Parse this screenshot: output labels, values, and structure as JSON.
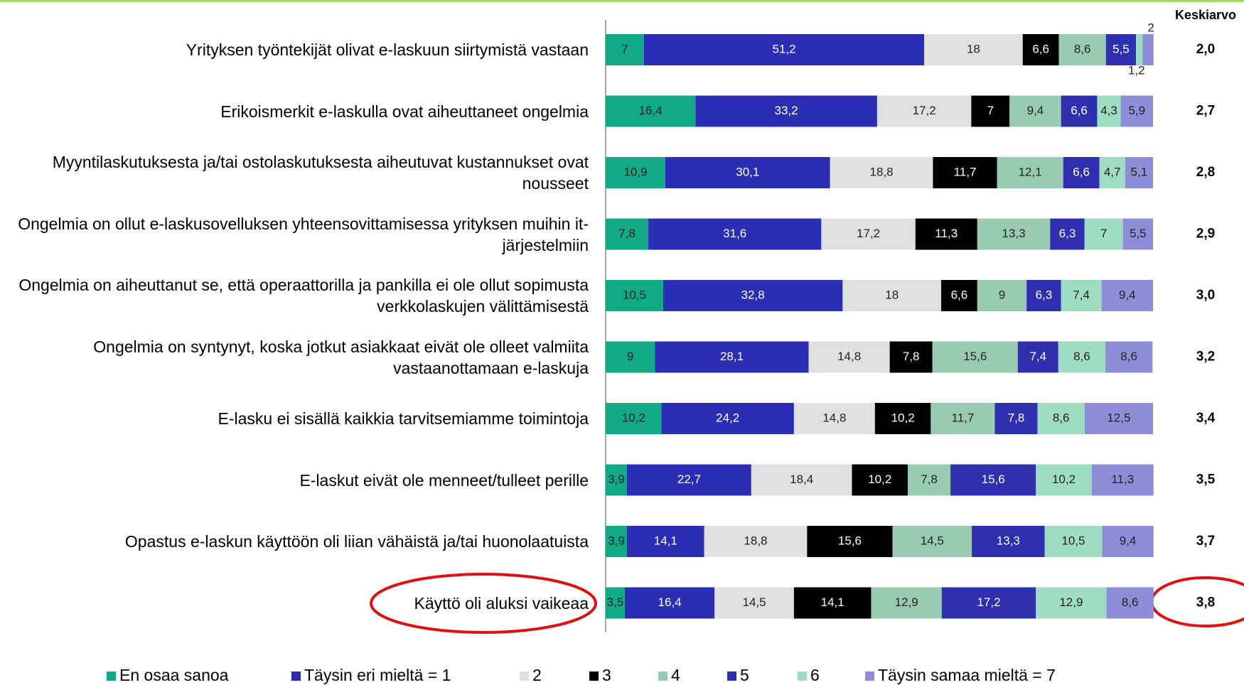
{
  "chart_data": {
    "type": "stacked-bar-horizontal",
    "categories": [
      "Yrityksen työntekijät olivat e-laskuun siirtymistä vastaan",
      "Erikoismerkit e-laskulla ovat aiheuttaneet ongelmia",
      "Myyntilaskutuksesta ja/tai ostolaskutuksesta aiheutuvat kustannukset ovat nousseet",
      "Ongelmia on ollut e-laskusovelluksen yhteensovittamisessa yrityksen muihin it-järjestelmiin",
      "Ongelmia on aiheuttanut se, että operaattorilla ja pankilla ei ole ollut sopimusta verkkolaskujen välittämisestä",
      "Ongelmia on syntynyt, koska jotkut asiakkaat eivät ole olleet valmiita vastaanottamaan e-laskuja",
      "E-lasku ei sisällä kaikkia tarvitsemiamme toimintoja",
      "E-laskut eivät ole menneet/tulleet perille",
      "Opastus e-laskun käyttöön oli liian vähäistä ja/tai huonolaatuista",
      "Käyttö oli aluksi vaikeaa"
    ],
    "xlim": [
      0,
      100
    ],
    "series": [
      {
        "name": "En osaa sanoa",
        "color": "#12a987",
        "values": [
          7,
          16.4,
          10.9,
          7.8,
          10.5,
          9,
          10.2,
          3.9,
          3.9,
          3.5
        ],
        "value_labels": [
          "7",
          "16,4",
          "10,9",
          "7,8",
          "10,5",
          "9",
          "10,2",
          "3,9",
          "3,9",
          "3,5"
        ]
      },
      {
        "name": "Täysin eri mieltä = 1",
        "color": "#2b2db4",
        "values": [
          51.2,
          33.2,
          30.1,
          31.6,
          32.8,
          28.1,
          24.2,
          22.7,
          14.1,
          16.4
        ],
        "value_labels": [
          "51,2",
          "33,2",
          "30,1",
          "31,6",
          "32,8",
          "28,1",
          "24,2",
          "22,7",
          "14,1",
          "16,4"
        ]
      },
      {
        "name": "2",
        "color": "#e0e0e0",
        "values": [
          18,
          17.2,
          18.8,
          17.2,
          18,
          14.8,
          14.8,
          18.4,
          18.8,
          14.5
        ],
        "value_labels": [
          "18",
          "17,2",
          "18,8",
          "17,2",
          "18",
          "14,8",
          "14,8",
          "18,4",
          "18,8",
          "14,5"
        ]
      },
      {
        "name": "3",
        "color": "#000000",
        "values": [
          6.6,
          7,
          11.7,
          11.3,
          6.6,
          7.8,
          10.2,
          10.2,
          15.6,
          14.1
        ],
        "value_labels": [
          "6,6",
          "7",
          "11,7",
          "11,3",
          "6,6",
          "7,8",
          "10,2",
          "10,2",
          "15,6",
          "14,1"
        ]
      },
      {
        "name": "4",
        "color": "#98cbb2",
        "values": [
          8.6,
          9.4,
          12.1,
          13.3,
          9,
          15.6,
          11.7,
          7.8,
          14.5,
          12.9
        ],
        "value_labels": [
          "8,6",
          "9,4",
          "12,1",
          "13,3",
          "9",
          "15,6",
          "11,7",
          "7,8",
          "14,5",
          "12,9"
        ]
      },
      {
        "name": "5",
        "color": "#2f30b0",
        "values": [
          5.5,
          6.6,
          6.6,
          6.3,
          6.3,
          7.4,
          7.8,
          15.6,
          13.3,
          17.2
        ],
        "value_labels": [
          "5,5",
          "6,6",
          "6,6",
          "6,3",
          "6,3",
          "7,4",
          "7,8",
          "15,6",
          "13,3",
          "17,2"
        ]
      },
      {
        "name": "6",
        "color": "#9fdcc4",
        "values": [
          1.2,
          4.3,
          4.7,
          7,
          7.4,
          8.6,
          8.6,
          10.2,
          10.5,
          12.9
        ],
        "value_labels": [
          "1,2",
          "4,3",
          "4,7",
          "7",
          "7,4",
          "8,6",
          "8,6",
          "10,2",
          "10,5",
          "12,9"
        ]
      },
      {
        "name": "Täysin samaa mieltä = 7",
        "color": "#8e8ed8",
        "values": [
          2,
          5.9,
          5.1,
          5.5,
          9.4,
          8.6,
          12.5,
          11.3,
          9.4,
          8.6
        ],
        "value_labels": [
          "2",
          "5,9",
          "5,1",
          "5,5",
          "9,4",
          "8,6",
          "12,5",
          "11,3",
          "9,4",
          "8,6"
        ]
      }
    ],
    "mean_title": "Keskiarvo",
    "means": [
      2.0,
      2.7,
      2.8,
      2.9,
      3.0,
      3.2,
      3.4,
      3.5,
      3.7,
      3.8
    ],
    "mean_labels": [
      "2,0",
      "2,7",
      "2,8",
      "2,9",
      "3,0",
      "3,2",
      "3,4",
      "3,5",
      "3,7",
      "3,8"
    ]
  }
}
